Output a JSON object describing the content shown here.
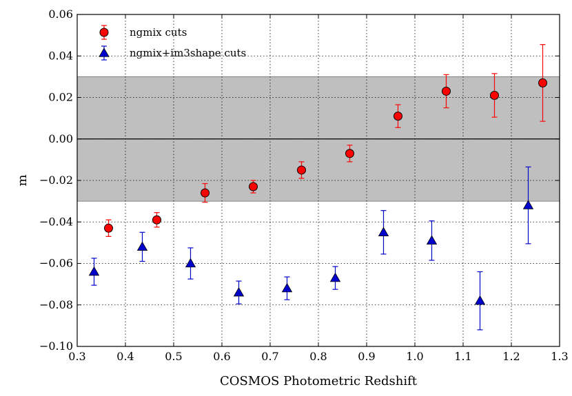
{
  "chart_data": {
    "type": "scatter",
    "xlabel": "COSMOS Photometric Redshift",
    "ylabel": "m",
    "xlim": [
      0.3,
      1.3
    ],
    "ylim": [
      -0.1,
      0.06
    ],
    "grid": true,
    "x_ticks": [
      "0.3",
      "0.4",
      "0.5",
      "0.6",
      "0.7",
      "0.8",
      "0.9",
      "1.0",
      "1.1",
      "1.2",
      "1.3"
    ],
    "y_ticks": [
      "−0.10",
      "−0.08",
      "−0.06",
      "−0.04",
      "−0.02",
      "0.00",
      "0.02",
      "0.04",
      "0.06"
    ],
    "shaded_band": {
      "y_low": -0.03,
      "y_high": 0.03,
      "color": "#bfbfbf"
    },
    "reference_line": 0.0,
    "legend_location": "top-left",
    "series": [
      {
        "name": "ngmix cuts",
        "marker": "circle",
        "color": "#ff0000",
        "points": [
          {
            "x": 0.365,
            "y": -0.043,
            "err": 0.004
          },
          {
            "x": 0.465,
            "y": -0.039,
            "err": 0.0035
          },
          {
            "x": 0.565,
            "y": -0.026,
            "err": 0.0045
          },
          {
            "x": 0.665,
            "y": -0.023,
            "err": 0.003
          },
          {
            "x": 0.765,
            "y": -0.015,
            "err": 0.004
          },
          {
            "x": 0.865,
            "y": -0.007,
            "err": 0.004
          },
          {
            "x": 0.965,
            "y": 0.011,
            "err": 0.0055
          },
          {
            "x": 1.065,
            "y": 0.023,
            "err": 0.008
          },
          {
            "x": 1.165,
            "y": 0.021,
            "err": 0.0105
          },
          {
            "x": 1.265,
            "y": 0.027,
            "err": 0.0185
          }
        ]
      },
      {
        "name": "ngmix+im3shape cuts",
        "marker": "triangle",
        "color": "#0000cc",
        "points": [
          {
            "x": 0.335,
            "y": -0.064,
            "err": 0.0065
          },
          {
            "x": 0.435,
            "y": -0.052,
            "err": 0.007
          },
          {
            "x": 0.535,
            "y": -0.06,
            "err": 0.0075
          },
          {
            "x": 0.635,
            "y": -0.074,
            "err": 0.0055
          },
          {
            "x": 0.735,
            "y": -0.072,
            "err": 0.0055
          },
          {
            "x": 0.835,
            "y": -0.067,
            "err": 0.0055
          },
          {
            "x": 0.935,
            "y": -0.045,
            "err": 0.0105
          },
          {
            "x": 1.035,
            "y": -0.049,
            "err": 0.0095
          },
          {
            "x": 1.135,
            "y": -0.078,
            "err": 0.014
          },
          {
            "x": 1.235,
            "y": -0.032,
            "err": 0.0185
          }
        ]
      }
    ]
  }
}
